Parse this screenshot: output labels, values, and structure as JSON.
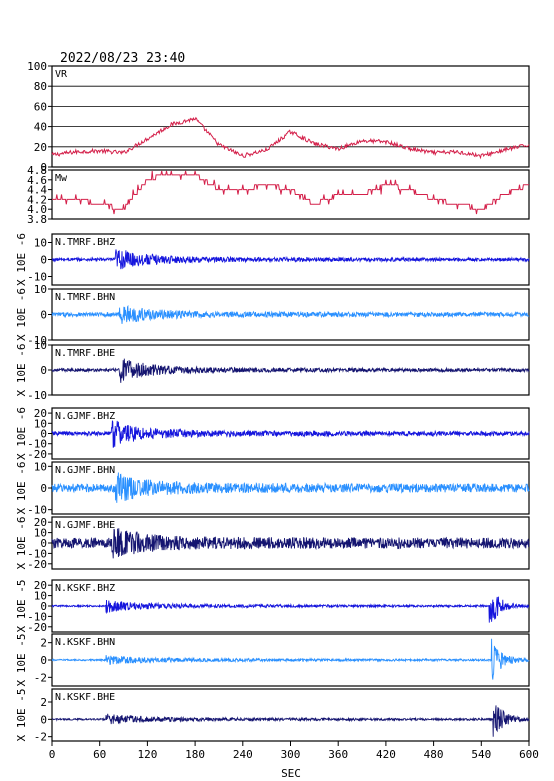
{
  "header": {
    "datetime": "2022/08/23 23:40"
  },
  "xaxis": {
    "label": "SEC",
    "ticks": [
      "0",
      "60",
      "120",
      "180",
      "240",
      "300",
      "360",
      "420",
      "480",
      "540",
      "600"
    ],
    "range": [
      0,
      600
    ]
  },
  "colors": {
    "red": "#d4204a",
    "blue": "#1515dd",
    "light": "#2a90ff",
    "dark": "#141470",
    "grid": "#000000"
  },
  "panels": [
    {
      "id": "vr",
      "label": "VR",
      "type": "vr",
      "ylabel": "",
      "ticks": [
        "100",
        "80",
        "60",
        "40",
        "20",
        "0"
      ],
      "range": [
        0,
        100
      ],
      "color": "red"
    },
    {
      "id": "mw",
      "label": "Mw",
      "type": "mw",
      "ylabel": "",
      "ticks": [
        "4.8",
        "4.6",
        "4.4",
        "4.2",
        "4.0",
        "3.8"
      ],
      "range": [
        3.8,
        4.8
      ],
      "color": "red"
    },
    {
      "id": "tmrf-bhz",
      "label": "N.TMRF.BHZ",
      "type": "wave",
      "ylabel": "X 10E -6",
      "ticks": [
        "10",
        "0",
        "-10"
      ],
      "range": [
        -15,
        15
      ],
      "color": "blue",
      "onset": 80,
      "amp": 0.36,
      "noise": 0.06,
      "late": null
    },
    {
      "id": "tmrf-bhn",
      "label": "N.TMRF.BHN",
      "type": "wave",
      "ylabel": "X 10E -6",
      "ticks": [
        "10",
        "0",
        "-10"
      ],
      "range": [
        -10,
        10
      ],
      "color": "light",
      "onset": 85,
      "amp": 0.28,
      "noise": 0.08,
      "late": null
    },
    {
      "id": "tmrf-bhe",
      "label": "N.TMRF.BHE",
      "type": "wave",
      "ylabel": "X 10E -6",
      "ticks": [
        "10",
        "0",
        "-10"
      ],
      "range": [
        -10,
        10
      ],
      "color": "dark",
      "onset": 85,
      "amp": 0.42,
      "noise": 0.06,
      "late": null
    },
    {
      "id": "gjmf-bhz",
      "label": "N.GJMF.BHZ",
      "type": "wave",
      "ylabel": "X 10E -6",
      "ticks": [
        "20",
        "10",
        "0",
        "-10",
        "-20"
      ],
      "range": [
        -25,
        25
      ],
      "color": "blue",
      "onset": 75,
      "amp": 0.45,
      "noise": 0.08,
      "late": null
    },
    {
      "id": "gjmf-bhn",
      "label": "N.GJMF.BHN",
      "type": "wave",
      "ylabel": "X 10E -6",
      "ticks": [
        "10",
        "0",
        "-10"
      ],
      "range": [
        -12,
        12
      ],
      "color": "light",
      "onset": 80,
      "amp": 0.42,
      "noise": 0.16,
      "late": null
    },
    {
      "id": "gjmf-bhe",
      "label": "N.GJMF.BHE",
      "type": "wave",
      "ylabel": "X 10E -6",
      "ticks": [
        "20",
        "10",
        "0",
        "-10",
        "-20"
      ],
      "range": [
        -25,
        25
      ],
      "color": "dark",
      "onset": 75,
      "amp": 0.4,
      "noise": 0.2,
      "late": null
    },
    {
      "id": "kskf-bhz",
      "label": "N.KSKF.BHZ",
      "type": "wave",
      "ylabel": "X 10E -5",
      "ticks": [
        "20",
        "10",
        "0",
        "-10",
        "-20"
      ],
      "range": [
        -25,
        25
      ],
      "color": "blue",
      "onset": 68,
      "amp": 0.18,
      "noise": 0.03,
      "late": 550
    },
    {
      "id": "kskf-bhn",
      "label": "N.KSKF.BHN",
      "type": "wave",
      "ylabel": "X 10E -5",
      "ticks": [
        "2",
        "0",
        "-2"
      ],
      "range": [
        -3,
        3
      ],
      "color": "light",
      "onset": 68,
      "amp": 0.12,
      "noise": 0.03,
      "late": 553
    },
    {
      "id": "kskf-bhe",
      "label": "N.KSKF.BHE",
      "type": "wave",
      "ylabel": "X 10E -5",
      "ticks": [
        "2",
        "0",
        "-2"
      ],
      "range": [
        -2.5,
        3.5
      ],
      "color": "dark",
      "onset": 68,
      "amp": 0.14,
      "noise": 0.03,
      "late": 555
    }
  ],
  "chart_data": {
    "type": "line",
    "title": "2022/08/23 23:40",
    "xlabel": "SEC",
    "xlim": [
      0,
      600
    ],
    "x": [
      0,
      30,
      60,
      90,
      120,
      150,
      180,
      210,
      240,
      270,
      300,
      330,
      360,
      390,
      420,
      450,
      480,
      510,
      540,
      570,
      600
    ],
    "series": [
      {
        "name": "VR",
        "ylim": [
          0,
          100
        ],
        "values": [
          12,
          15,
          16,
          14,
          28,
          42,
          48,
          22,
          11,
          17,
          35,
          23,
          18,
          26,
          25,
          18,
          14,
          15,
          11,
          17,
          22
        ]
      },
      {
        "name": "Mw",
        "ylim": [
          3.8,
          4.8
        ],
        "values": [
          4.2,
          4.2,
          4.1,
          4.0,
          4.6,
          4.75,
          4.7,
          4.4,
          4.4,
          4.5,
          4.4,
          4.1,
          4.3,
          4.3,
          4.5,
          4.4,
          4.2,
          4.1,
          4.0,
          4.3,
          4.5
        ]
      }
    ]
  }
}
